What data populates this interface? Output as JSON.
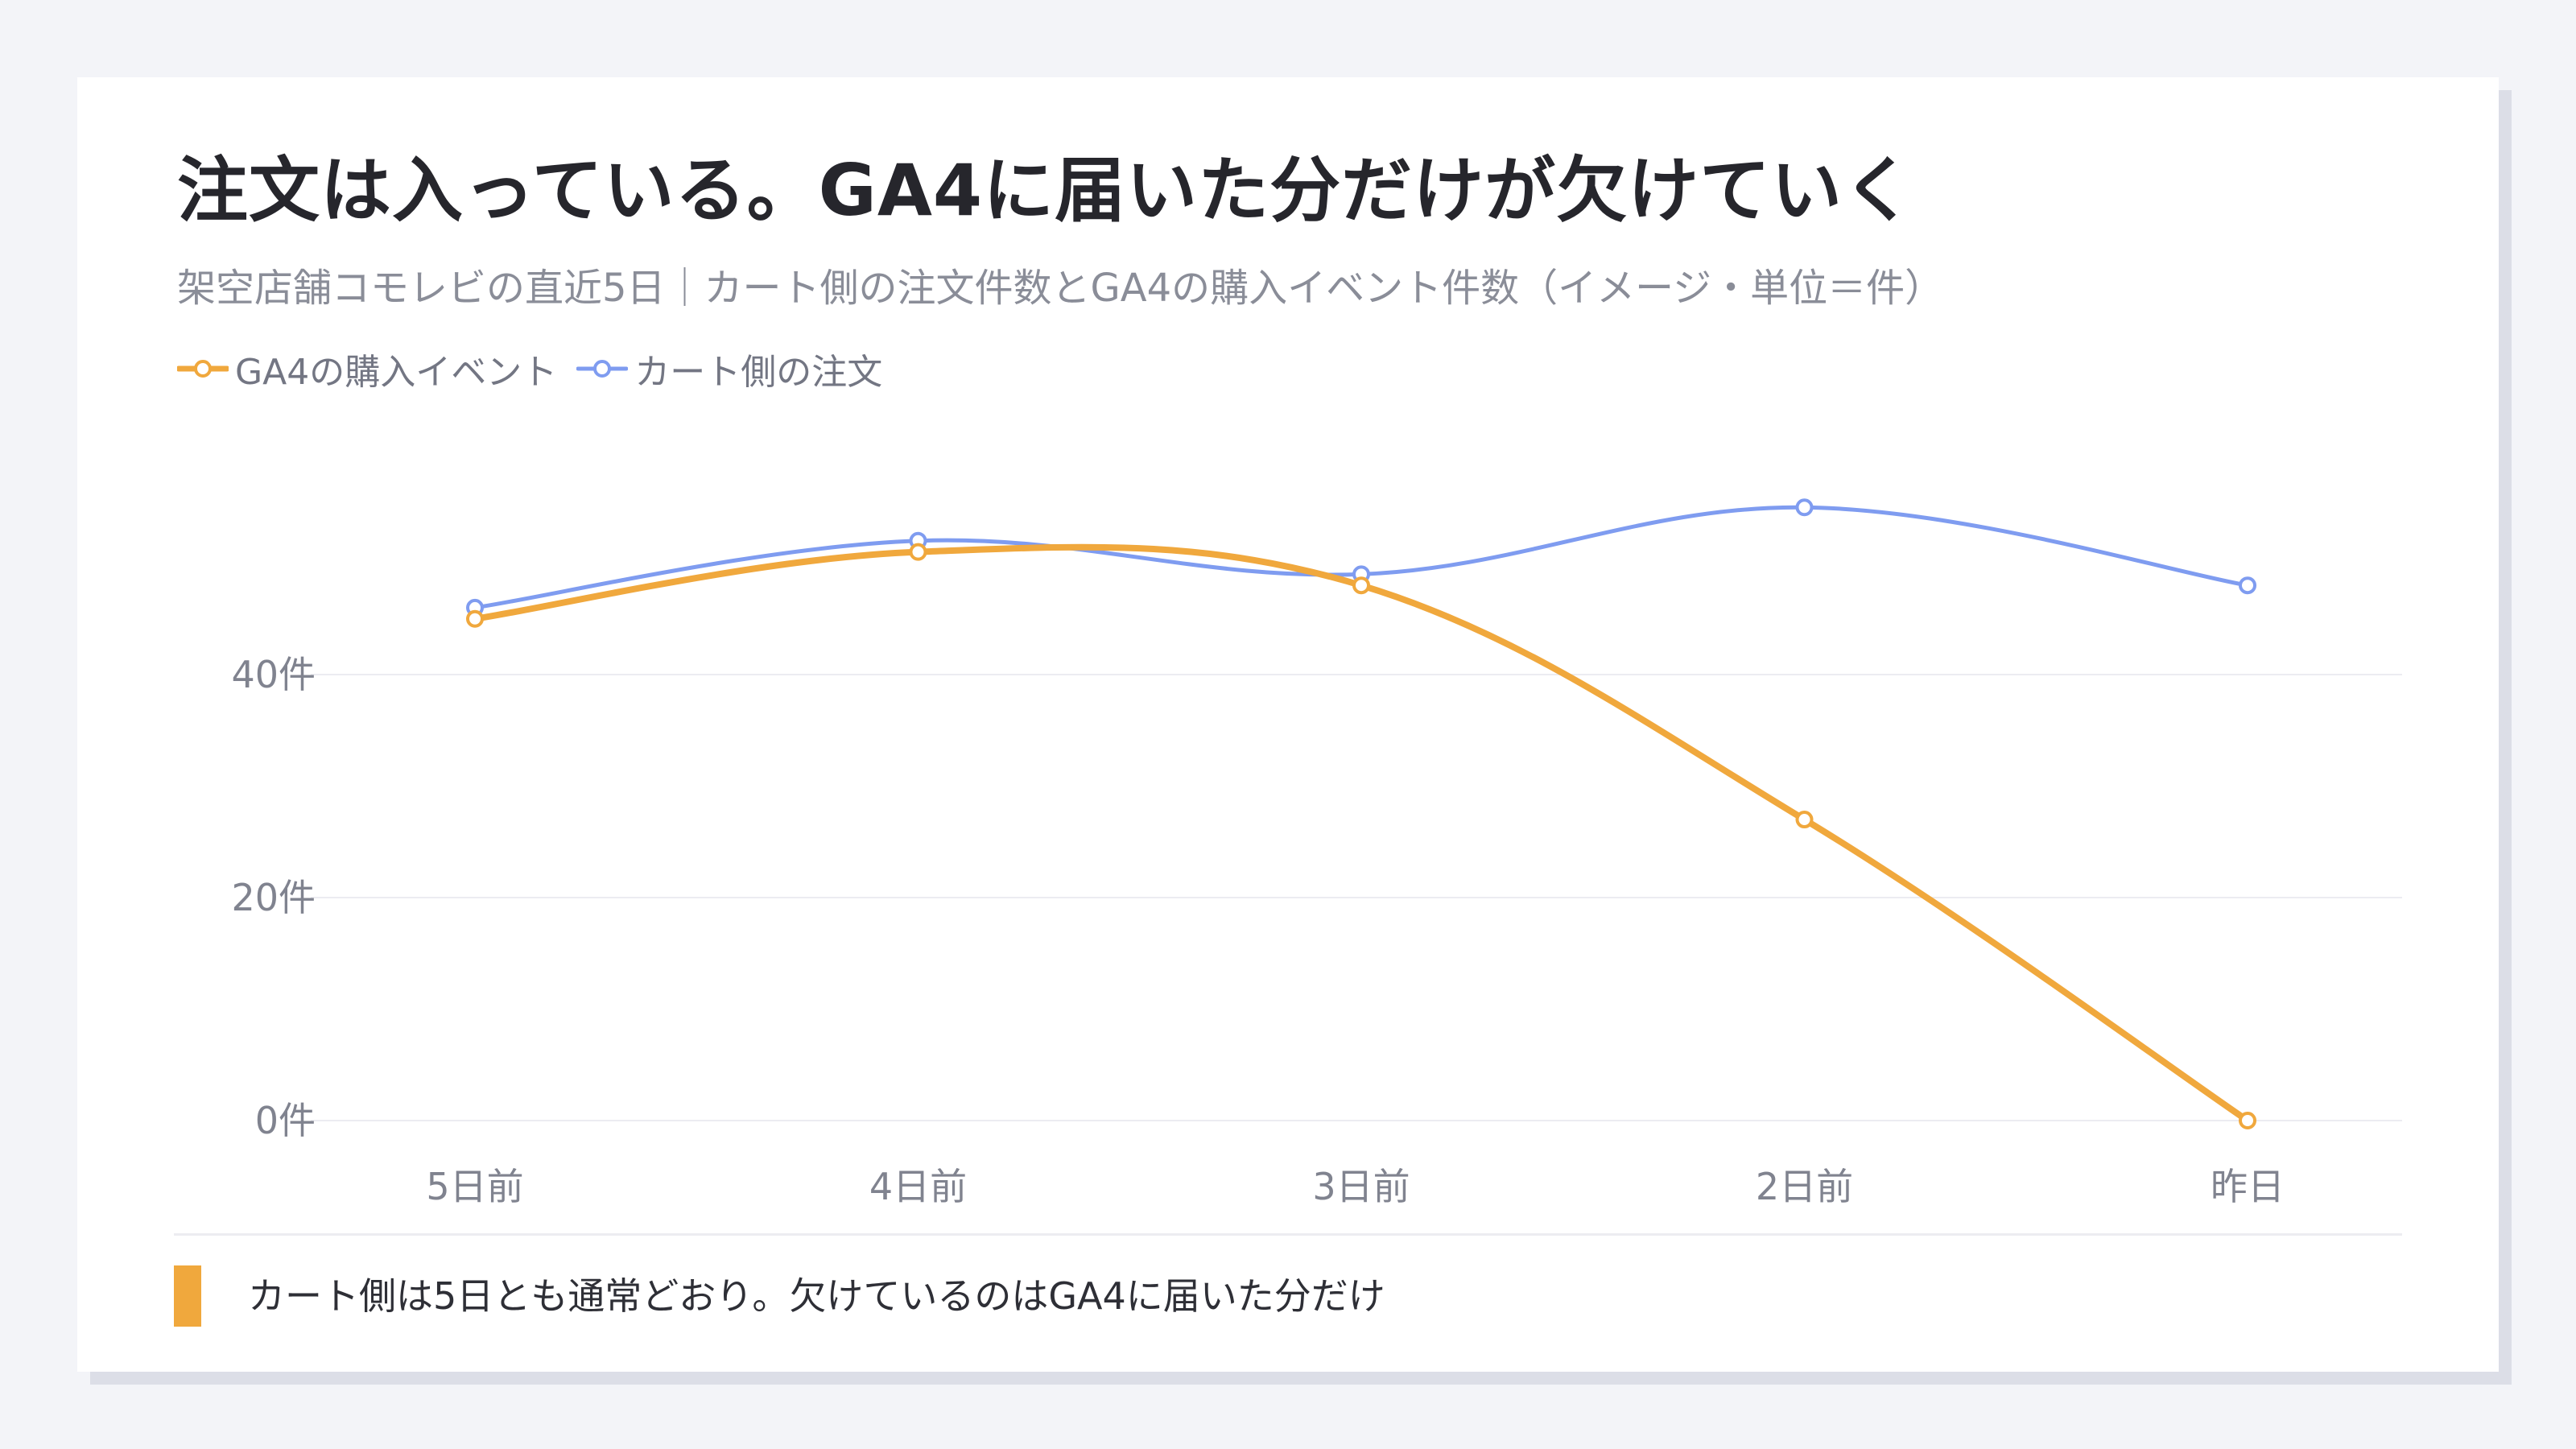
{
  "title": "注文は入っている。GA4に届いた分だけが欠けていく",
  "subtitle": "架空店舗コモレビの直近5日｜カート側の注文件数とGA4の購入イベント件数（イメージ・単位＝件）",
  "note": "カート側は5日とも通常どおり。欠けているのはGA4に届いた分だけ",
  "colors": {
    "ga4": "#f0a83d",
    "cart": "#7f9cf0",
    "grid": "#ececf1",
    "accent": "#f0a83d"
  },
  "chart_data": {
    "type": "line",
    "categories": [
      "5日前",
      "4日前",
      "3日前",
      "2日前",
      "昨日"
    ],
    "series": [
      {
        "name": "GA4の購入イベント",
        "values": [
          45,
          51,
          48,
          27,
          0
        ]
      },
      {
        "name": "カート側の注文",
        "values": [
          46,
          52,
          49,
          55,
          48
        ]
      }
    ],
    "yticks": [
      0,
      20,
      40
    ],
    "ytick_labels": [
      "0件",
      "20件",
      "40件"
    ],
    "ylim": [
      0,
      60
    ],
    "grid": true,
    "legend_position": "top-left",
    "xlabel": "",
    "ylabel": ""
  }
}
